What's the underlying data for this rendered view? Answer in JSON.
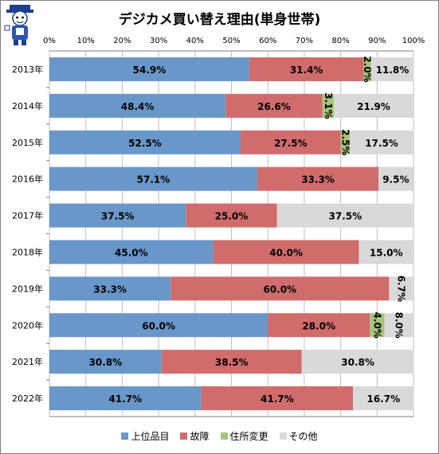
{
  "title": "デジカメ買い替え理由(単身世帯)",
  "chart_data": {
    "type": "bar",
    "orientation": "horizontal",
    "stacked": "percent",
    "title": "デジカメ買い替え理由(単身世帯)",
    "categories": [
      "2013年",
      "2014年",
      "2015年",
      "2016年",
      "2017年",
      "2018年",
      "2019年",
      "2020年",
      "2021年",
      "2022年"
    ],
    "series": [
      {
        "name": "上位品目",
        "color": "#6a97c9",
        "values": [
          54.9,
          48.4,
          52.5,
          57.1,
          37.5,
          45.0,
          33.3,
          60.0,
          30.8,
          41.7
        ],
        "labels": [
          "54.9%",
          "48.4%",
          "52.5%",
          "57.1%",
          "37.5%",
          "45.0%",
          "33.3%",
          "60.0%",
          "30.8%",
          "41.7%"
        ]
      },
      {
        "name": "故障",
        "color": "#d16c6c",
        "values": [
          31.4,
          26.6,
          27.5,
          33.3,
          25.0,
          40.0,
          60.0,
          28.0,
          38.5,
          41.7
        ],
        "labels": [
          "31.4%",
          "26.6%",
          "27.5%",
          "33.3%",
          "25.0%",
          "40.0%",
          "60.0%",
          "28.0%",
          "38.5%",
          "41.7%"
        ]
      },
      {
        "name": "住所変更",
        "color": "#a6c47a",
        "values": [
          2.0,
          3.1,
          2.5,
          0,
          0,
          0,
          0,
          4.0,
          0,
          0
        ],
        "labels": [
          "2.0%",
          "3.1%",
          "2.5%",
          "",
          "",
          "",
          "",
          "4.0%",
          "",
          ""
        ]
      },
      {
        "name": "その他",
        "color": "#d9d9d9",
        "values": [
          11.8,
          21.9,
          17.5,
          9.5,
          37.5,
          15.0,
          6.7,
          8.0,
          30.8,
          16.7
        ],
        "labels": [
          "11.8%",
          "21.9%",
          "17.5%",
          "9.5%",
          "37.5%",
          "15.0%",
          "6.7%",
          "8.0%",
          "30.8%",
          "16.7%"
        ]
      }
    ],
    "xlim": [
      0,
      100
    ],
    "x_ticks": [
      "0%",
      "10%",
      "20%",
      "30%",
      "40%",
      "50%",
      "60%",
      "70%",
      "80%",
      "90%",
      "100%"
    ],
    "grid": true,
    "legend_position": "bottom"
  }
}
